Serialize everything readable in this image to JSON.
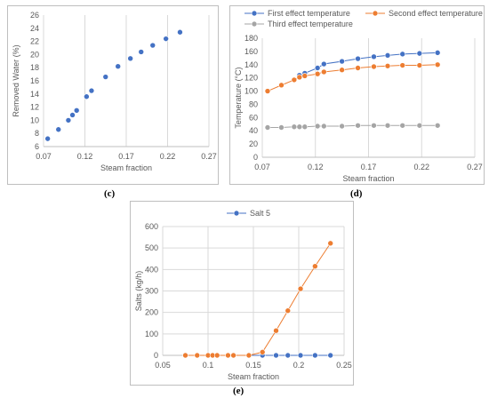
{
  "captions": {
    "c": "(c)",
    "d": "(d)",
    "e": "(e)"
  },
  "chart_data": [
    {
      "type": "scatter",
      "id": "c",
      "xlabel": "Steam fraction",
      "ylabel": "Removed Water (%)",
      "xlim": [
        0.07,
        0.27
      ],
      "ylim": [
        6,
        26
      ],
      "xticks": [
        0.07,
        0.12,
        0.17,
        0.22,
        0.27
      ],
      "xticklabels": [
        "0.07",
        "0.12",
        "0.17",
        "0.22",
        "0.27"
      ],
      "yticks": [
        6,
        8,
        10,
        12,
        14,
        16,
        18,
        20,
        22,
        24,
        26
      ],
      "yticklabels": [
        "6",
        "8",
        "10",
        "12",
        "14",
        "16",
        "18",
        "20",
        "22",
        "24",
        "26"
      ],
      "grid": "vertical",
      "legend": "none",
      "series": [
        {
          "color": "#4472c4",
          "marker": "circle",
          "x": [
            0.075,
            0.088,
            0.1,
            0.105,
            0.11,
            0.122,
            0.128,
            0.145,
            0.16,
            0.175,
            0.188,
            0.202,
            0.218,
            0.235
          ],
          "y": [
            7.2,
            8.6,
            10.0,
            10.8,
            11.5,
            13.6,
            14.5,
            16.6,
            18.2,
            19.4,
            20.4,
            21.4,
            22.4,
            23.4
          ]
        }
      ]
    },
    {
      "type": "line",
      "id": "d",
      "xlabel": "Steam fraction",
      "ylabel": "Temperature (°C)",
      "xlim": [
        0.07,
        0.27
      ],
      "ylim": [
        0,
        180
      ],
      "xticks": [
        0.07,
        0.12,
        0.17,
        0.22,
        0.27
      ],
      "xticklabels": [
        "0.07",
        "0.12",
        "0.17",
        "0.22",
        "0.27"
      ],
      "yticks": [
        0,
        20,
        40,
        60,
        80,
        100,
        120,
        140,
        160,
        180
      ],
      "yticklabels": [
        "0",
        "20",
        "40",
        "60",
        "80",
        "100",
        "120",
        "140",
        "160",
        "180"
      ],
      "grid": "vertical",
      "legend": "top",
      "series": [
        {
          "name": "First effect temperature",
          "color": "#4472c4",
          "marker": "circle",
          "x": [
            0.105,
            0.11,
            0.122,
            0.128,
            0.145,
            0.16,
            0.175,
            0.188,
            0.202,
            0.218,
            0.235
          ],
          "y": [
            124,
            127,
            135,
            141,
            145,
            149,
            152,
            154,
            156,
            157,
            158
          ]
        },
        {
          "name": "Second effect temperature",
          "color": "#ed7d31",
          "marker": "circle",
          "x": [
            0.075,
            0.088,
            0.1,
            0.105,
            0.11,
            0.122,
            0.128,
            0.145,
            0.16,
            0.175,
            0.188,
            0.202,
            0.218,
            0.235
          ],
          "y": [
            100,
            109,
            117,
            121,
            123,
            126,
            129,
            132,
            135,
            137,
            138,
            139,
            139,
            140
          ]
        },
        {
          "name": "Third effect temperature",
          "color": "#a5a5a5",
          "marker": "circle",
          "x": [
            0.075,
            0.088,
            0.1,
            0.105,
            0.11,
            0.122,
            0.128,
            0.145,
            0.16,
            0.175,
            0.188,
            0.202,
            0.218,
            0.235
          ],
          "y": [
            45,
            45,
            46,
            46,
            46,
            47,
            47,
            47,
            48,
            48,
            48,
            48,
            48,
            48
          ]
        }
      ]
    },
    {
      "type": "line",
      "id": "e",
      "xlabel": "Steam fraction",
      "ylabel": "Salts (kg/h)",
      "xlim": [
        0.05,
        0.25
      ],
      "ylim": [
        0,
        600
      ],
      "xticks": [
        0.05,
        0.1,
        0.15,
        0.2,
        0.25
      ],
      "xticklabels": [
        "0.05",
        "0.1",
        "0.15",
        "0.2",
        "0.25"
      ],
      "yticks": [
        0,
        100,
        200,
        300,
        400,
        500,
        600
      ],
      "yticklabels": [
        "0",
        "100",
        "200",
        "300",
        "400",
        "500",
        "600"
      ],
      "grid": "both",
      "legend": "top",
      "series": [
        {
          "name": "Salt 5",
          "color": "#4472c4",
          "marker": "circle",
          "x": [
            0.075,
            0.088,
            0.1,
            0.105,
            0.11,
            0.122,
            0.128,
            0.145,
            0.16,
            0.175,
            0.188,
            0.202,
            0.218,
            0.235
          ],
          "y": [
            0,
            0,
            0,
            0,
            0,
            0,
            0,
            0,
            0,
            0,
            0,
            0,
            0,
            0
          ]
        },
        {
          "color": "#ed7d31",
          "marker": "circle",
          "x": [
            0.075,
            0.088,
            0.1,
            0.105,
            0.11,
            0.122,
            0.128,
            0.145,
            0.16,
            0.175,
            0.188,
            0.202,
            0.218,
            0.235
          ],
          "y": [
            0,
            0,
            0,
            0,
            0,
            0,
            0,
            0,
            15,
            115,
            208,
            310,
            415,
            522
          ]
        }
      ]
    }
  ]
}
